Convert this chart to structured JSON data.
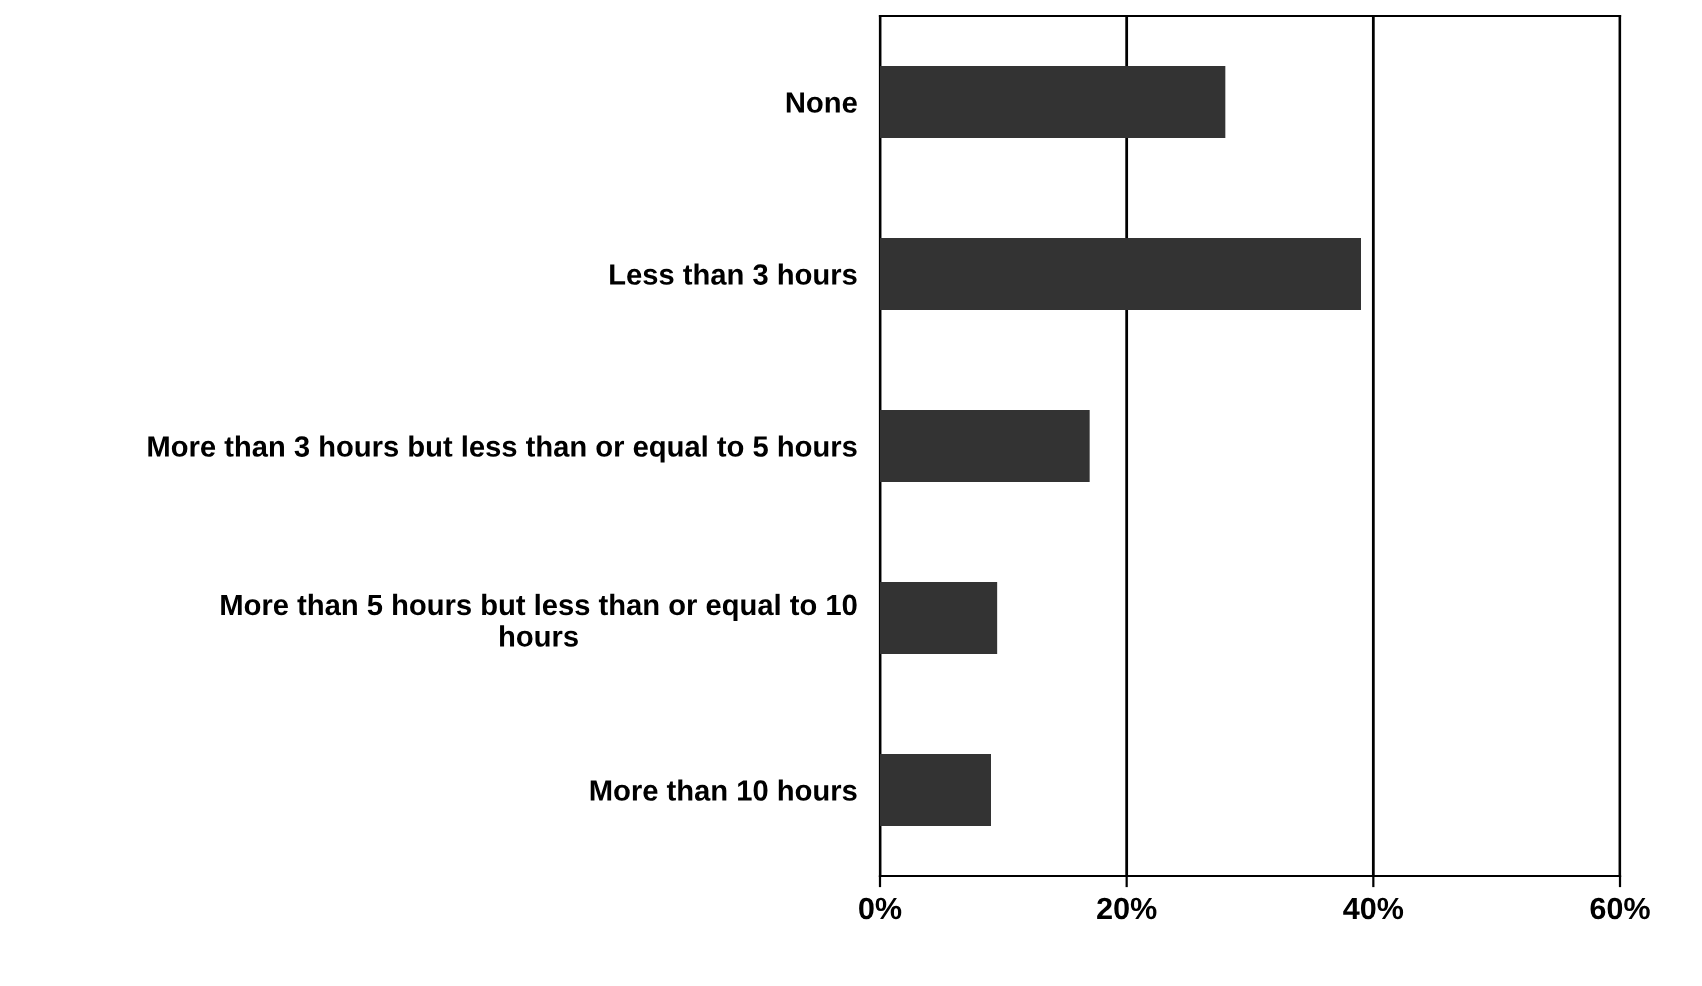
{
  "chart_data": {
    "type": "bar",
    "orientation": "horizontal",
    "categories": [
      "None",
      "Less than 3 hours",
      "More than 3 hours but less than or equal to 5 hours",
      "More than 5 hours but less than or equal to 10\nhours",
      "More than 10 hours"
    ],
    "values": [
      28,
      39,
      17,
      9.5,
      9
    ],
    "color": "#333333",
    "xlim": [
      0,
      60
    ],
    "xticks": [
      {
        "value": 0,
        "label": "0%"
      },
      {
        "value": 20,
        "label": "20%"
      },
      {
        "value": 40,
        "label": "40%"
      },
      {
        "value": 60,
        "label": "60%"
      }
    ],
    "grid": "x"
  }
}
